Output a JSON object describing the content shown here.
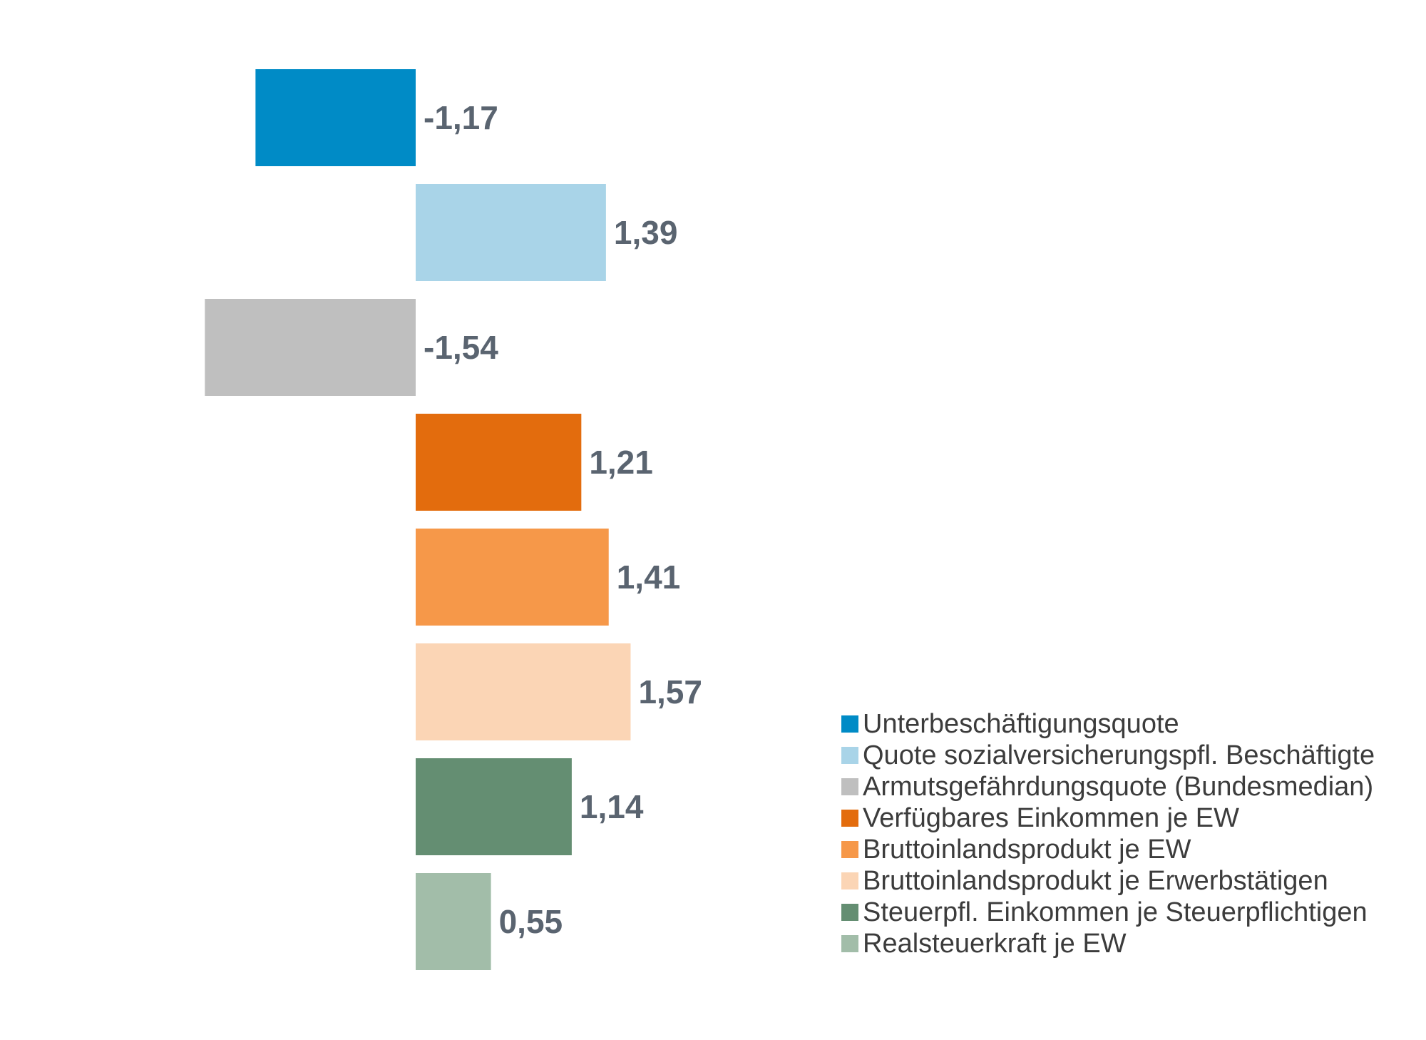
{
  "chart_data": {
    "type": "bar",
    "orientation": "horizontal",
    "categories": [
      "Unterbeschäftigungsquote",
      "Quote sozialversicherungspfl. Beschäftigte",
      "Armutsgefährdungsquote (Bundesmedian)",
      "Verfügbares Einkommen je EW",
      "Bruttoinlandsprodukt je EW",
      "Bruttoinlandsprodukt je Erwerbstätigen",
      "Steuerpfl. Einkommen je Steuerpflichtigen",
      "Realsteuerkraft je EW"
    ],
    "values": [
      -1.17,
      1.39,
      -1.54,
      1.21,
      1.41,
      1.57,
      1.14,
      0.55
    ],
    "value_labels": [
      "-1,17",
      "1,39",
      "-1,54",
      "1,21",
      "1,41",
      "1,57",
      "1,14",
      "0,55"
    ],
    "colors": [
      "#008bc6",
      "#a9d4e8",
      "#bfbfbf",
      "#e36c0d",
      "#f69849",
      "#fbd5b5",
      "#648e72",
      "#a2bda9"
    ],
    "legend_position": "bottom-right",
    "grid": false,
    "title": "",
    "xlabel": "",
    "ylabel": ""
  }
}
